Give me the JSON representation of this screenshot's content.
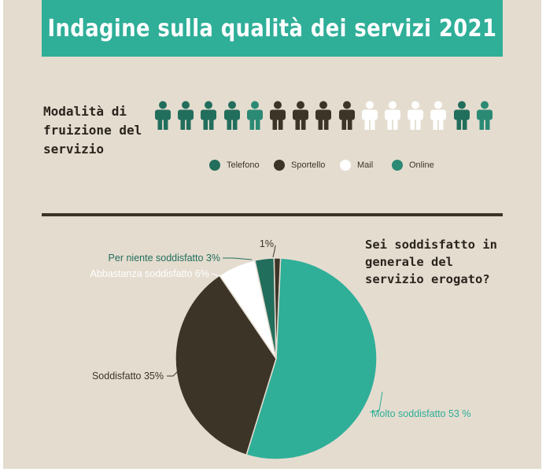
{
  "title": "Indagine sulla qualità dei servizi 2021",
  "modalita": {
    "label_lines": [
      "Modalità di",
      "fruizione del",
      "servizio"
    ],
    "people": [
      "Telefono",
      "Telefono",
      "Telefono",
      "Telefono",
      "Online",
      "Sportello",
      "Sportello",
      "Sportello",
      "Sportello",
      "Mail",
      "Mail",
      "Mail",
      "Mail",
      "Telefono",
      "Online"
    ],
    "legend": [
      {
        "label": "Telefono",
        "color": "#226e5c"
      },
      {
        "label": "Sportello",
        "color": "#3d3428"
      },
      {
        "label": "Mail",
        "color": "#ffffff"
      },
      {
        "label": "Online",
        "color": "#2b8a74"
      }
    ]
  },
  "question_lines": [
    "Sei soddisfatto in",
    "generale del",
    "servizio erogato?"
  ],
  "chart_data": {
    "type": "pie",
    "slices": [
      {
        "label": "Molto soddisfatto 53 %",
        "value": 53,
        "color": "#2fae98",
        "label_color": "#2fae98"
      },
      {
        "label": "Soddisfatto 35%",
        "value": 35,
        "color": "#3d3428",
        "label_color": "#3d3428"
      },
      {
        "label": "Abbastanza soddisfatto 6%",
        "value": 6,
        "color": "#ffffff",
        "label_color": "#ffffff"
      },
      {
        "label": "Per niente soddisfatto 3%",
        "value": 3,
        "color": "#226e5c",
        "label_color": "#226e5c"
      },
      {
        "label": "1%",
        "value": 1,
        "color": "#3d3428",
        "label_color": "#3d3428"
      }
    ]
  }
}
